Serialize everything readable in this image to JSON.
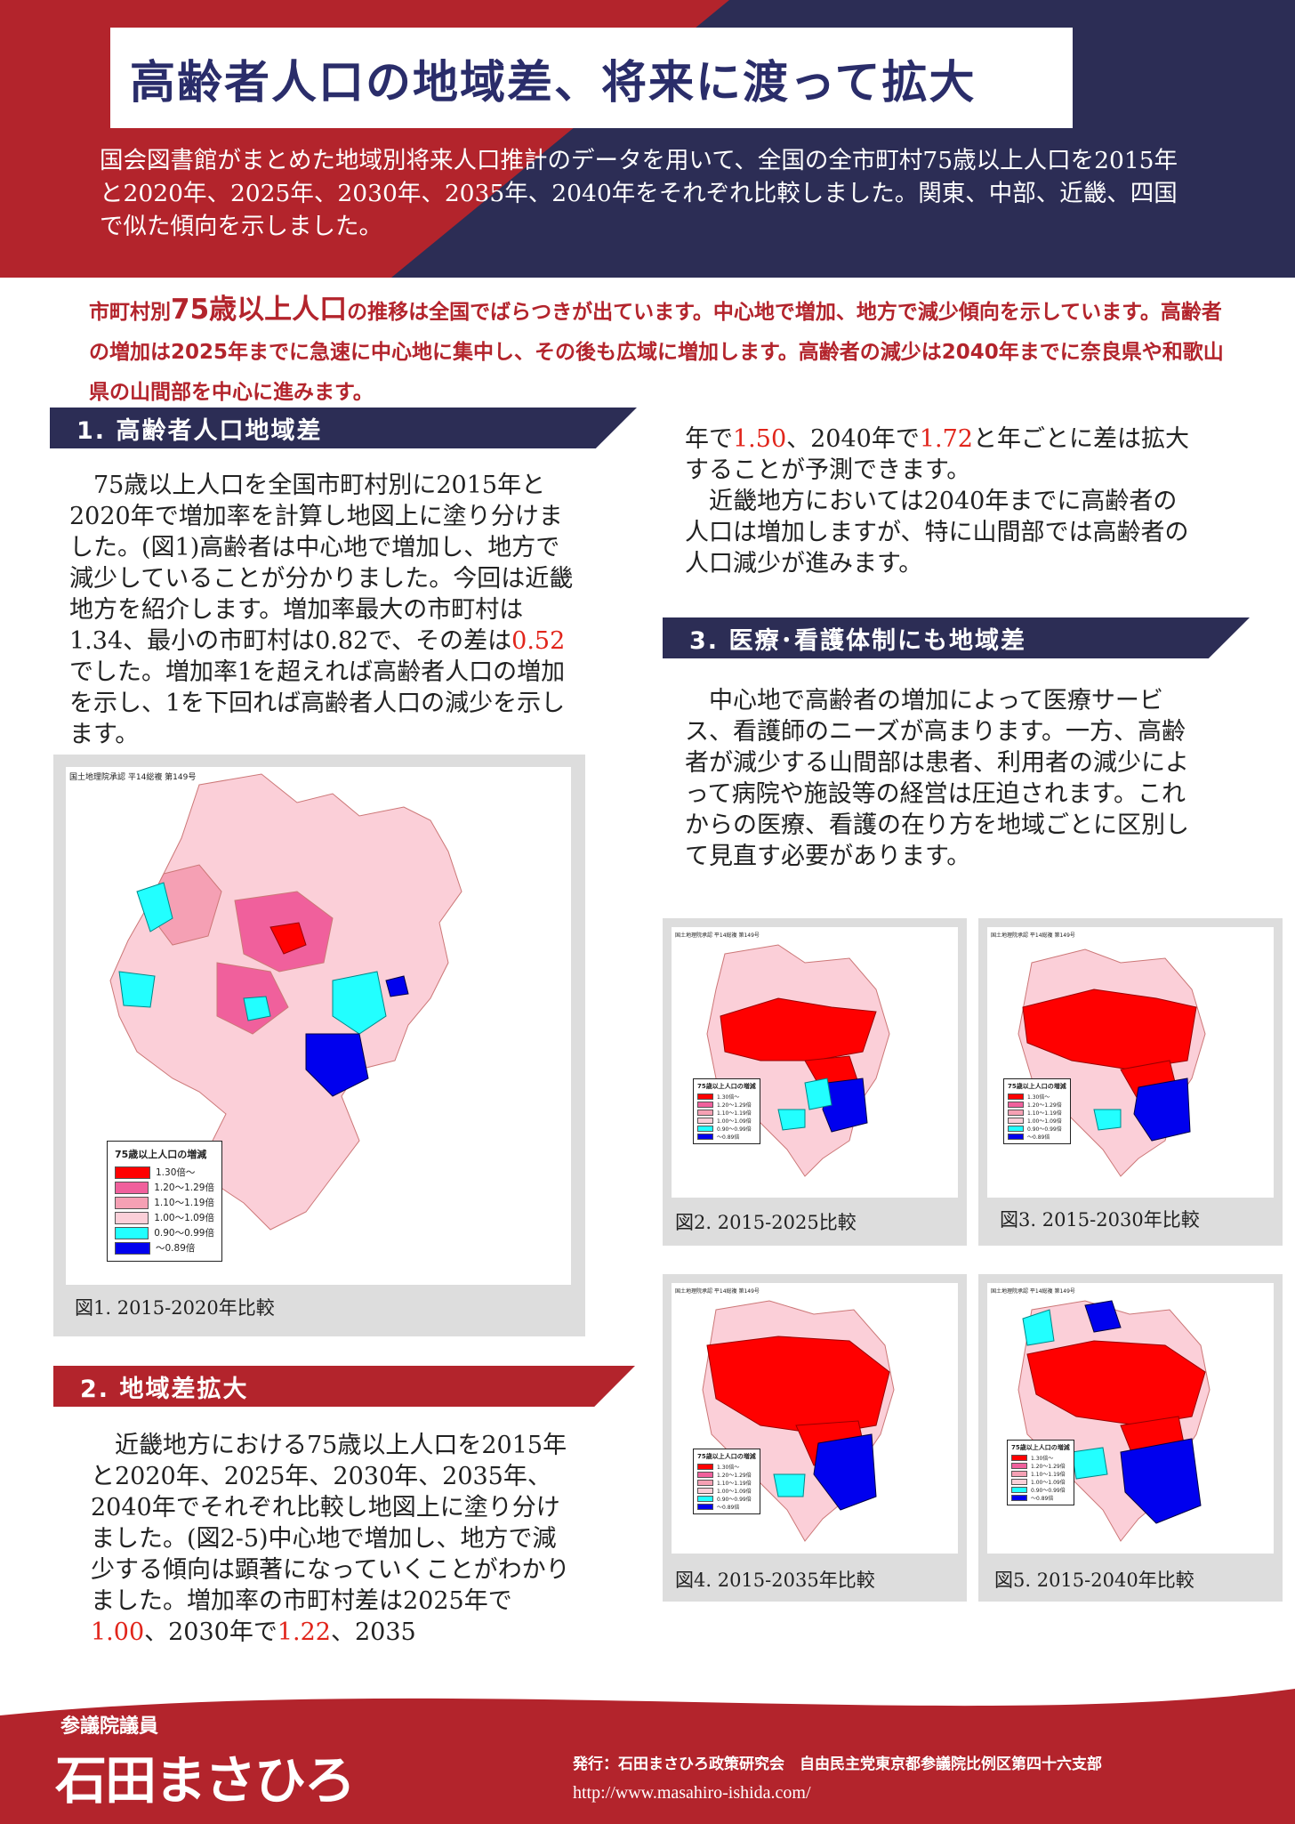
{
  "header": {
    "title": "高齢者人口の地域差、将来に渡って拡大",
    "intro": "国会図書館がまとめた地域別将来人口推計のデータを用いて、全国の全市町村75歳以上人口を2015年と2020年、2025年、2030年、2035年、2040年をそれぞれ比較しました。関東、中部、近畿、四国で似た傾向を示しました。"
  },
  "summary": {
    "pre": "市町村別",
    "highlight": "75歳以上人口",
    "rest": "の推移は全国でばらつきが出ています。中心地で増加、地方で減少傾向を示しています。高齢者の増加は2025年までに急速に中心地に集中し、その後も広域に増加します。高齢者の減少は2040年までに奈良県や和歌山県の山間部を中心に進みます。"
  },
  "section1": {
    "heading": "1. 高齢者人口地域差",
    "text_a": "75歳以上人口を全国市町村別に2015年と2020年で増加率を計算し地図上に塗り分けました。(図1)高齢者は中心地で増加し、地方で減少していることが分かりました。今回は近畿地方を紹介します。増加率最大の市町村は1.34、最小の市町村は0.82で、その差は",
    "diff": "0.52",
    "text_b": "でした。増加率1を超えれば高齢者人口の増加を示し、1を下回れば高齢者人口の減少を示します。"
  },
  "section2": {
    "heading": "2. 地域差拡大",
    "text_a": "近畿地方における75歳以上人口を2015年と2020年、2025年、2030年、2035年、2040年でそれぞれ比較し地図上に塗り分けました。(図2-5)中心地で増加し、地方で減少する傾向は顕著になっていくことがわかりました。増加率の市町村差は2025年で",
    "v2025": "1.00",
    "text_b": "、2030年で",
    "v2030": "1.22",
    "text_c": "、2035",
    "cont_a": "年で",
    "v2035": "1.50",
    "cont_b": "、2040年で",
    "v2040": "1.72",
    "cont_c": "と年ごとに差は拡大することが予測できます。",
    "para2": "近畿地方においては2040年までに高齢者の人口は増加しますが、特に山間部では高齢者の人口減少が進みます。"
  },
  "section3": {
    "heading": "3. 医療･看護体制にも地域差",
    "text": "中心地で高齢者の増加によって医療サービス、看護師のニーズが高まります。一方、高齢者が減少する山間部は患者、利用者の減少によって病院や施設等の経営は圧迫されます。これからの医療、看護の在り方を地域ごとに区別して見直す必要があります。"
  },
  "map_source": "国土地理院承認 平14総複 第149号",
  "legend": {
    "title": "75歳以上人口の増減",
    "items": [
      {
        "label": "1.30倍～",
        "color": "#ff0000"
      },
      {
        "label": "1.20～1.29倍",
        "color": "#f0609c"
      },
      {
        "label": "1.10～1.19倍",
        "color": "#f5a0b4"
      },
      {
        "label": "1.00～1.09倍",
        "color": "#fbcfd8"
      },
      {
        "label": "0.90～0.99倍",
        "color": "#22ffff"
      },
      {
        "label": "～0.89倍",
        "color": "#0000ee"
      }
    ]
  },
  "figures": {
    "fig1": "図1.  2015-2020年比較",
    "fig2": "図2.  2015-2025比較",
    "fig3": "図3.  2015-2030年比較",
    "fig4": "図4.  2015-2035年比較",
    "fig5": "図5.  2015-2040年比較"
  },
  "footer": {
    "member_title": "参議院議員",
    "name": "石田まさひろ",
    "publisher": "発行：石田まさひろ政策研究会　自由民主党東京都参議院比例区第四十六支部",
    "url": "http://www.masahiro-ishida.com/"
  }
}
